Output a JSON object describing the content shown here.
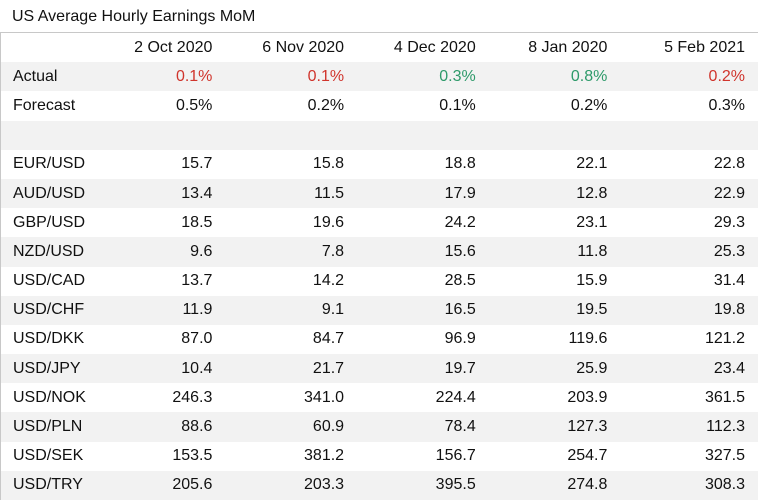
{
  "title": "US Average Hourly Earnings MoM",
  "columns": [
    "2 Oct 2020",
    "6 Nov 2020",
    "4 Dec 2020",
    "8 Jan 2020",
    "5 Feb 2021"
  ],
  "actual": {
    "label": "Actual",
    "values": [
      "0.1%",
      "0.1%",
      "0.3%",
      "0.8%",
      "0.2%"
    ],
    "colors": [
      "#d0342c",
      "#d0342c",
      "#2e9a6a",
      "#2e9a6a",
      "#d0342c"
    ]
  },
  "forecast": {
    "label": "Forecast",
    "values": [
      "0.5%",
      "0.2%",
      "0.1%",
      "0.2%",
      "0.3%"
    ]
  },
  "pairs": [
    {
      "label": "EUR/USD",
      "values": [
        "15.7",
        "15.8",
        "18.8",
        "22.1",
        "22.8"
      ]
    },
    {
      "label": "AUD/USD",
      "values": [
        "13.4",
        "11.5",
        "17.9",
        "12.8",
        "22.9"
      ]
    },
    {
      "label": "GBP/USD",
      "values": [
        "18.5",
        "19.6",
        "24.2",
        "23.1",
        "29.3"
      ]
    },
    {
      "label": "NZD/USD",
      "values": [
        "9.6",
        "7.8",
        "15.6",
        "11.8",
        "25.3"
      ]
    },
    {
      "label": "USD/CAD",
      "values": [
        "13.7",
        "14.2",
        "28.5",
        "15.9",
        "31.4"
      ]
    },
    {
      "label": "USD/CHF",
      "values": [
        "11.9",
        "9.1",
        "16.5",
        "19.5",
        "19.8"
      ]
    },
    {
      "label": "USD/DKK",
      "values": [
        "87.0",
        "84.7",
        "96.9",
        "119.6",
        "121.2"
      ]
    },
    {
      "label": "USD/JPY",
      "values": [
        "10.4",
        "21.7",
        "19.7",
        "25.9",
        "23.4"
      ]
    },
    {
      "label": "USD/NOK",
      "values": [
        "246.3",
        "341.0",
        "224.4",
        "203.9",
        "361.5"
      ]
    },
    {
      "label": "USD/PLN",
      "values": [
        "88.6",
        "60.9",
        "78.4",
        "127.3",
        "112.3"
      ]
    },
    {
      "label": "USD/SEK",
      "values": [
        "153.5",
        "381.2",
        "156.7",
        "254.7",
        "327.5"
      ]
    },
    {
      "label": "USD/TRY",
      "values": [
        "205.6",
        "203.3",
        "395.5",
        "274.8",
        "308.3"
      ]
    }
  ]
}
